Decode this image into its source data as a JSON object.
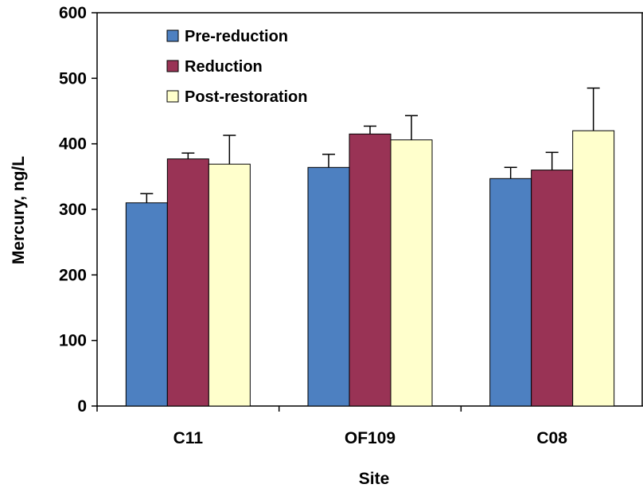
{
  "chart_data": {
    "type": "bar",
    "xlabel": "Site",
    "ylabel": "Mercury, ng/L",
    "ylim": [
      0,
      600
    ],
    "yticks": [
      0,
      100,
      200,
      300,
      400,
      500,
      600
    ],
    "categories": [
      "C11",
      "OF109",
      "C08"
    ],
    "series": [
      {
        "name": "Pre-reduction",
        "color": "#4d80c1",
        "values": [
          310,
          364,
          347
        ],
        "errors": [
          14,
          20,
          17
        ]
      },
      {
        "name": "Reduction",
        "color": "#993355",
        "values": [
          377,
          415,
          360
        ],
        "errors": [
          9,
          12,
          27
        ]
      },
      {
        "name": "Post-restoration",
        "color": "#ffffcc",
        "values": [
          369,
          406,
          420
        ],
        "errors": [
          44,
          37,
          65
        ]
      }
    ],
    "legend_position": "top-left",
    "grid": false
  }
}
